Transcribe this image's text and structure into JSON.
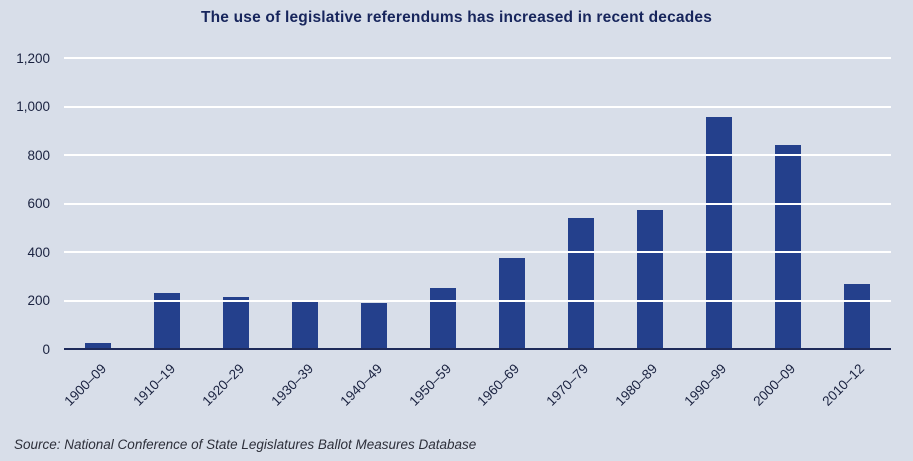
{
  "chart_data": {
    "type": "bar",
    "title": "The use of legislative referendums has increased in recent decades",
    "categories": [
      "1900–09",
      "1910–19",
      "1920–29",
      "1930–39",
      "1940–49",
      "1950–59",
      "1960–69",
      "1970–79",
      "1980–89",
      "1990–99",
      "2000–09",
      "2010–12"
    ],
    "values": [
      25,
      230,
      215,
      200,
      190,
      250,
      375,
      540,
      575,
      955,
      840,
      270
    ],
    "xlabel": "",
    "ylabel": "",
    "ylim": [
      0,
      1200
    ],
    "ytick_interval": 200,
    "ytick_labels": [
      "0",
      "200",
      "400",
      "600",
      "800",
      "1,000",
      "1,200"
    ],
    "grid": "horizontal white gridlines drawn over bars",
    "legend": "none",
    "source": "Source: National Conference of State Legislatures Ballot Measures Database",
    "colors": {
      "background": "#d8dee9",
      "bar": "#24408c",
      "gridline": "#ffffff",
      "baseline": "#1e2a5a",
      "title": "#17255c",
      "axis_text": "#1a2240",
      "source_text": "#2d2f3a"
    }
  }
}
